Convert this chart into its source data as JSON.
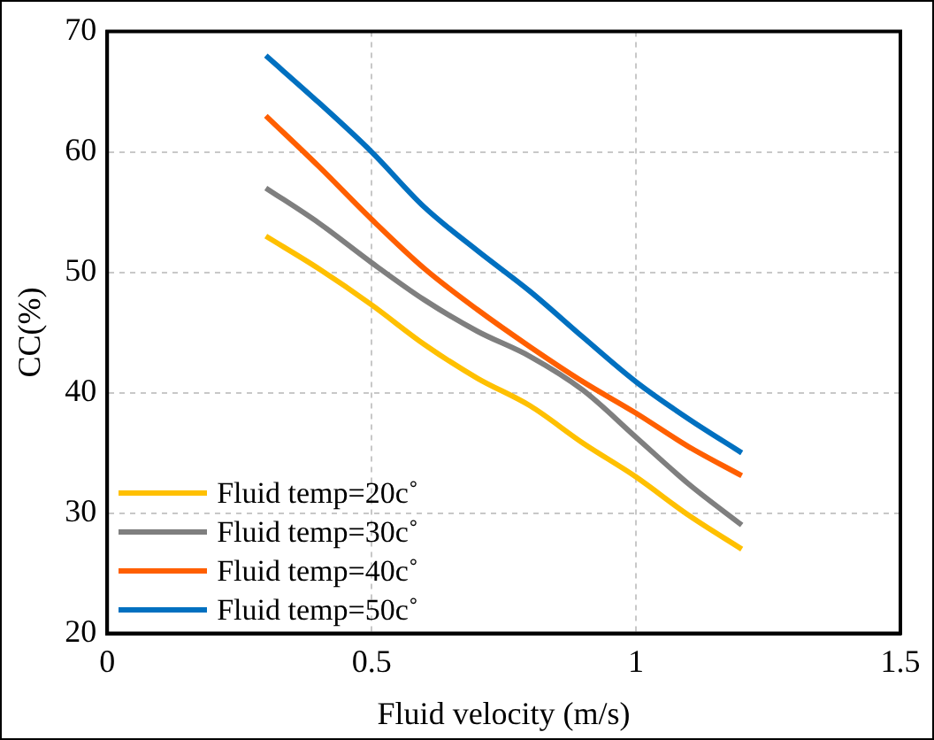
{
  "chart_data": {
    "type": "line",
    "xlabel": "Fluid velocity (m/s)",
    "ylabel": "CC(%)",
    "x": [
      0.3,
      0.4,
      0.5,
      0.6,
      0.7,
      0.8,
      0.9,
      1.0,
      1.1,
      1.2
    ],
    "series": [
      {
        "name": "Fluid temp=20c˚",
        "color": "#ffc000",
        "values": [
          53,
          50.3,
          47.3,
          44,
          41.2,
          38.9,
          35.8,
          33,
          29.8,
          27
        ]
      },
      {
        "name": "Fluid temp=30c˚",
        "color": "#7f7f7f",
        "values": [
          57,
          54.1,
          50.8,
          47.7,
          45.1,
          43,
          40.2,
          36.3,
          32.4,
          29
        ]
      },
      {
        "name": "Fluid temp=40c˚",
        "color": "#ff5f00",
        "values": [
          63,
          58.8,
          54.4,
          50.3,
          46.9,
          43.8,
          40.9,
          38.3,
          35.5,
          33.1
        ]
      },
      {
        "name": "Fluid temp=50c˚",
        "color": "#0070c0",
        "values": [
          68,
          64.1,
          60,
          55.4,
          51.8,
          48.4,
          44.6,
          40.9,
          37.8,
          35
        ]
      }
    ],
    "xlim": [
      0,
      1.5
    ],
    "xticks": [
      0,
      0.5,
      1,
      1.5
    ],
    "ylim": [
      20,
      70
    ],
    "yticks": [
      20,
      30,
      40,
      50,
      60,
      70
    ],
    "grid": true,
    "legend": "bottom left",
    "marker": "none",
    "line_style": "solid"
  }
}
